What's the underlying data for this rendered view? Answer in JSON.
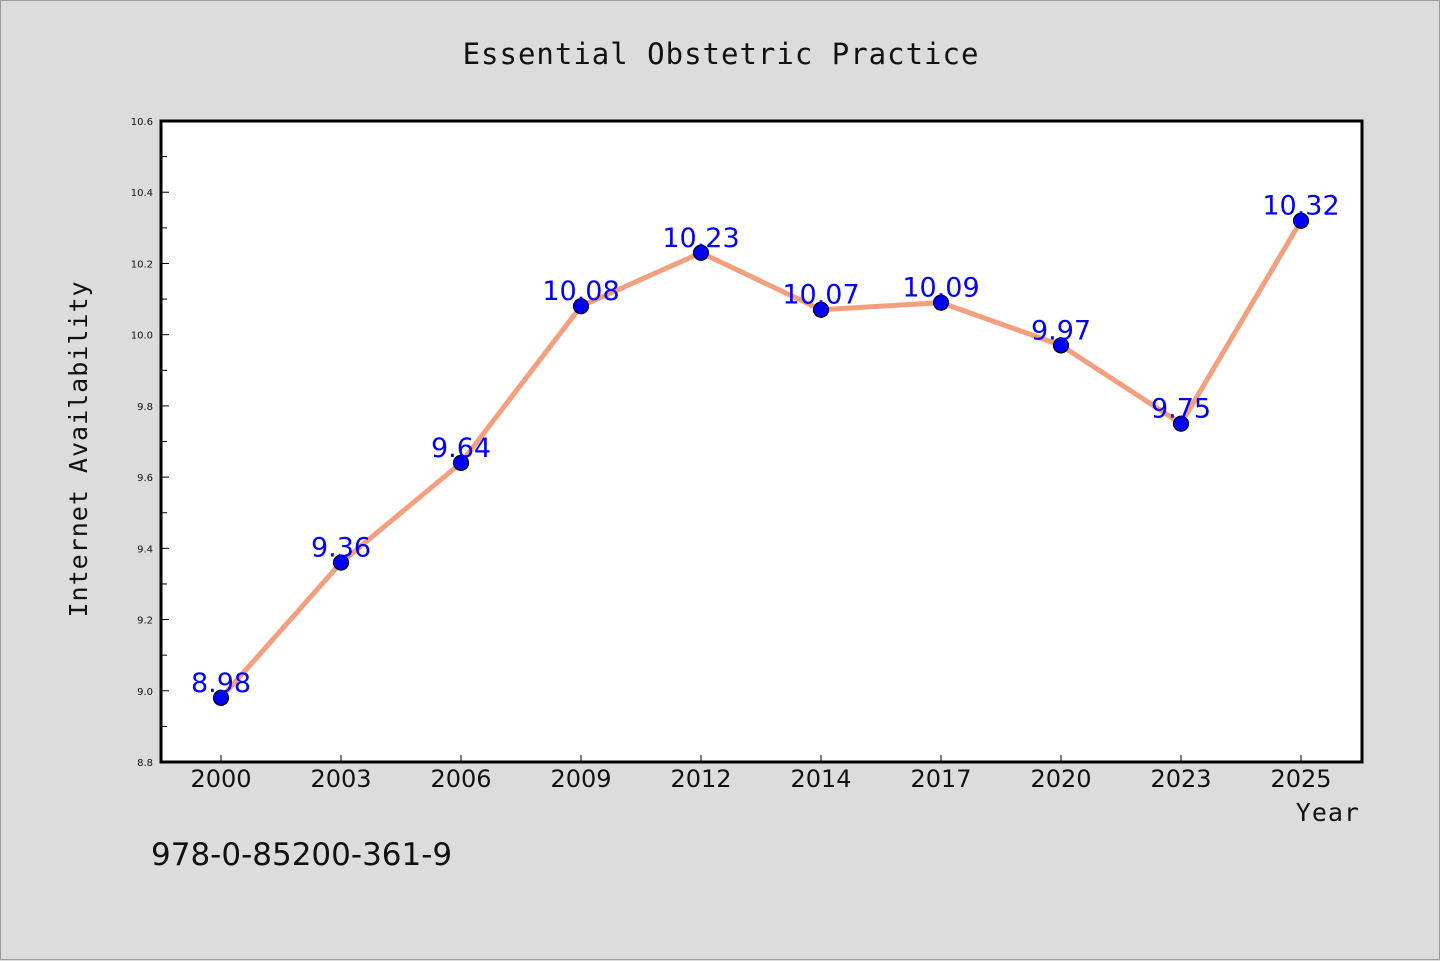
{
  "chart_data": {
    "type": "line",
    "title": "Essential Obstetric Practice",
    "xlabel": "Year",
    "ylabel": "Internet Availability",
    "categories": [
      "2000",
      "2003",
      "2006",
      "2009",
      "2012",
      "2014",
      "2017",
      "2020",
      "2023",
      "2025"
    ],
    "series": [
      {
        "values": [
          8.98,
          9.36,
          9.64,
          10.08,
          10.23,
          10.07,
          10.09,
          9.97,
          9.75,
          10.32
        ],
        "data_labels": [
          "8.98",
          "9.36",
          "9.64",
          "10.08",
          "10.23",
          "10.07",
          "10.09",
          "9.97",
          "9.75",
          "10.32"
        ],
        "line_color": "#f4a07f",
        "marker_color": "#0000ff",
        "label_color": "#0000ff"
      }
    ],
    "ylim": [
      8.8,
      10.6
    ],
    "yticks": [
      "8.8",
      "9.0",
      "9.2",
      "9.4",
      "9.6",
      "9.8",
      "10.0",
      "10.2",
      "10.4",
      "10.6"
    ],
    "grid": false,
    "legend": "none"
  },
  "footer": {
    "isbn": "978-0-85200-361-9"
  },
  "colors": {
    "background": "#dcdcdc",
    "plot_area": "#ffffff",
    "line": "#f4a07f",
    "marker": "#0000ff"
  }
}
